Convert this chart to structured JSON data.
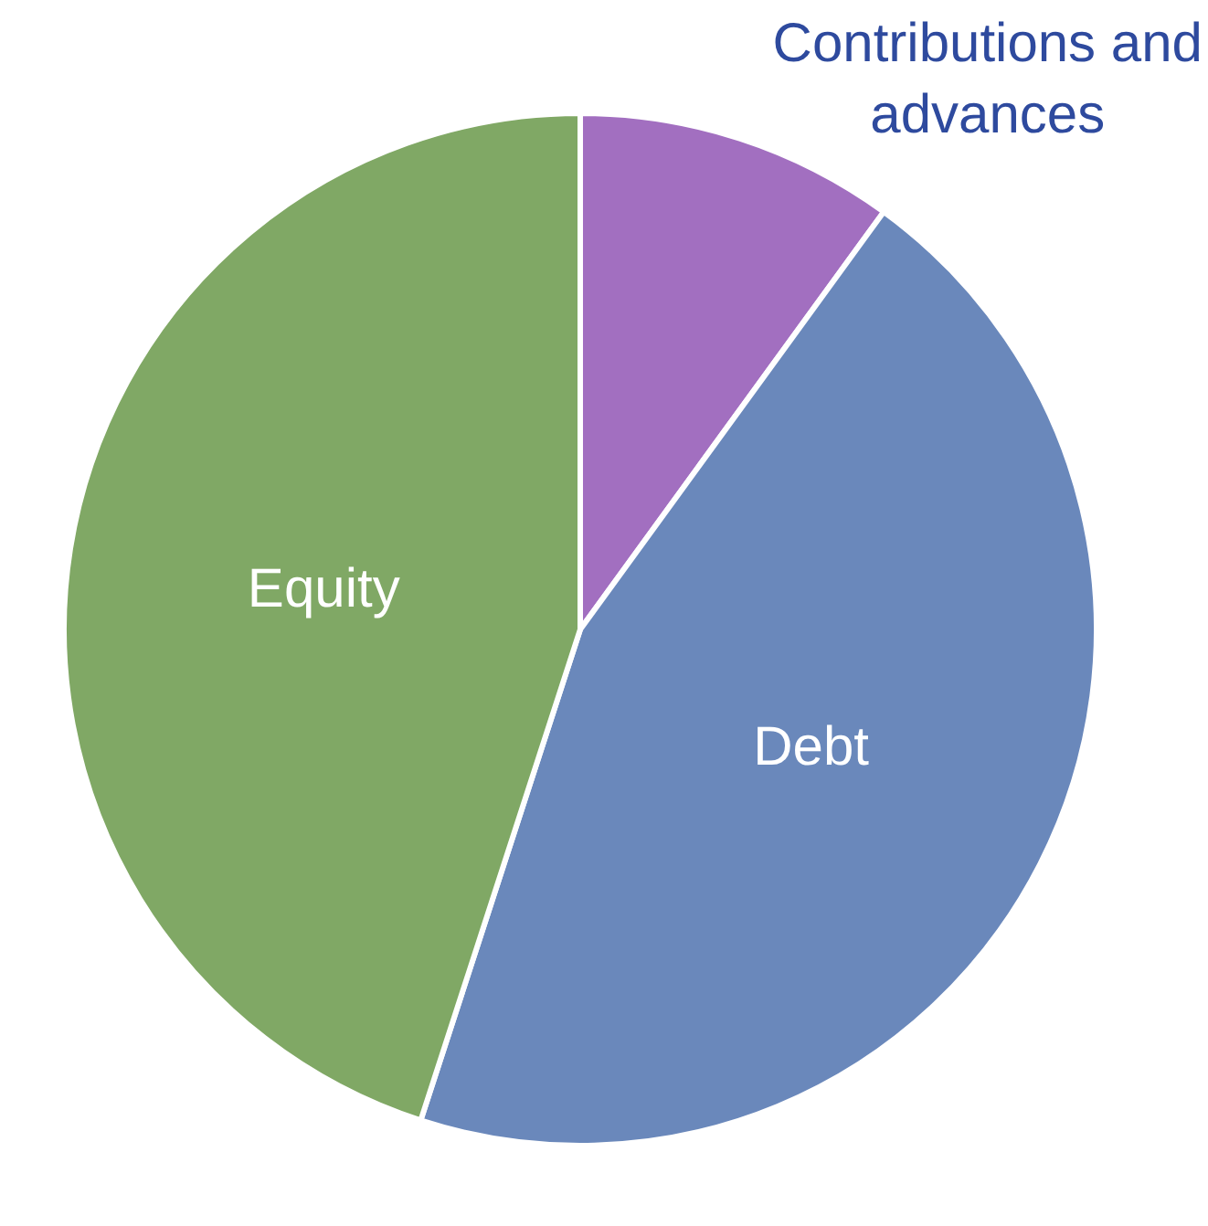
{
  "chart_data": {
    "type": "pie",
    "categories": [
      "Contributions and advances",
      "Debt",
      "Equity"
    ],
    "values": [
      10,
      45,
      45
    ],
    "colors": [
      "#a26fc0",
      "#6a88bb",
      "#80a865"
    ],
    "legend": false
  }
}
